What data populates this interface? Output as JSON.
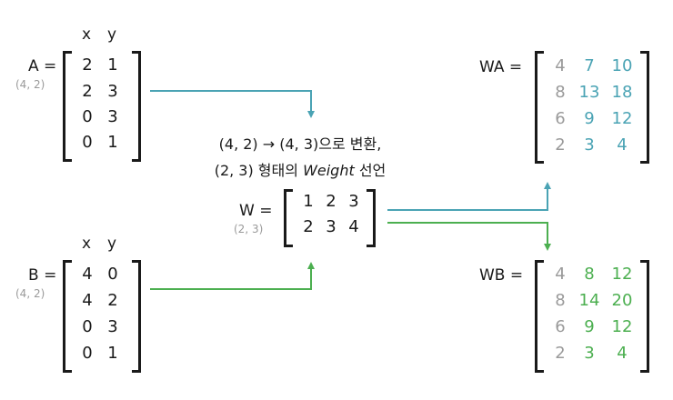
{
  "colors": {
    "teal": "#4aa3b4",
    "green": "#4caf50",
    "gray": "#9a9a9a",
    "ink": "#1a1a1a"
  },
  "matA": {
    "label": "A =",
    "shape": "(4, 2)",
    "headers": [
      "x",
      "y"
    ],
    "rows": [
      [
        "2",
        "1"
      ],
      [
        "2",
        "3"
      ],
      [
        "0",
        "3"
      ],
      [
        "0",
        "1"
      ]
    ]
  },
  "matB": {
    "label": "B =",
    "shape": "(4, 2)",
    "headers": [
      "x",
      "y"
    ],
    "rows": [
      [
        "4",
        "0"
      ],
      [
        "4",
        "2"
      ],
      [
        "0",
        "3"
      ],
      [
        "0",
        "1"
      ]
    ]
  },
  "matW": {
    "label": "W =",
    "shape": "(2, 3)",
    "rows": [
      [
        "1",
        "2",
        "3"
      ],
      [
        "2",
        "3",
        "4"
      ]
    ]
  },
  "matWA": {
    "label": "WA =",
    "rows": [
      [
        "4",
        "7",
        "10"
      ],
      [
        "8",
        "13",
        "18"
      ],
      [
        "6",
        "9",
        "12"
      ],
      [
        "2",
        "3",
        "4"
      ]
    ]
  },
  "matWB": {
    "label": "WB =",
    "rows": [
      [
        "4",
        "8",
        "12"
      ],
      [
        "8",
        "14",
        "20"
      ],
      [
        "6",
        "9",
        "12"
      ],
      [
        "2",
        "3",
        "4"
      ]
    ]
  },
  "caption": {
    "line1": "(4, 2) → (4, 3)으로 변환,",
    "line2_prefix": "(2, 3) 형태의 ",
    "line2_em": "Weight",
    "line2_suffix": " 선언"
  }
}
